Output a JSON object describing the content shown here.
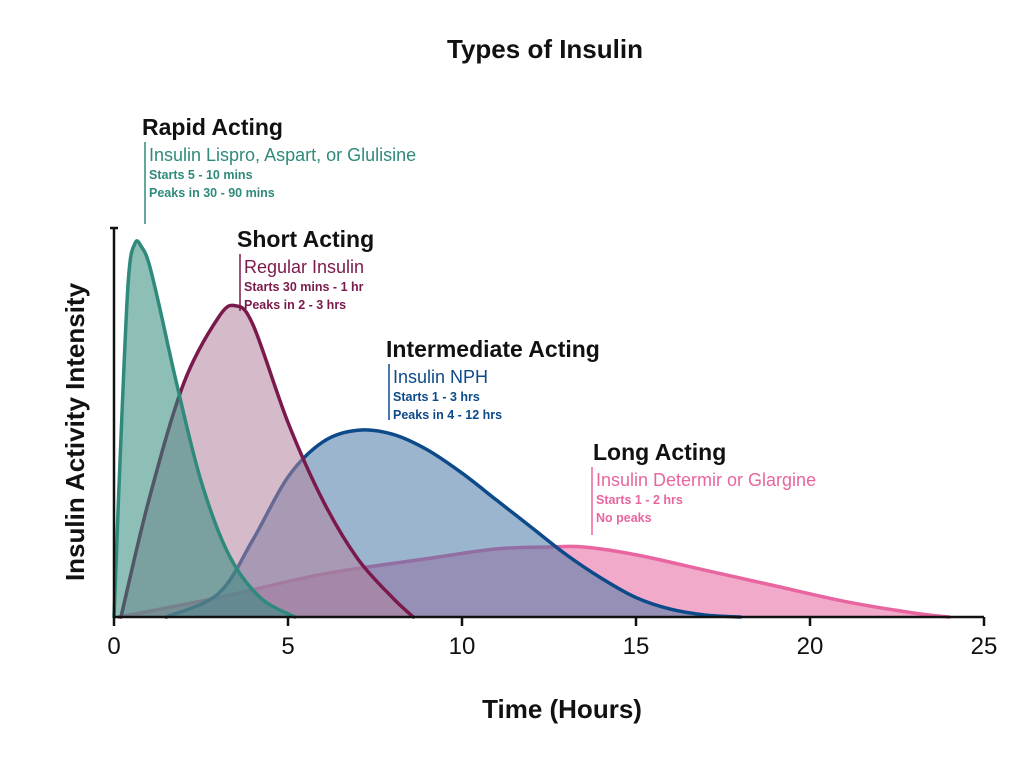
{
  "chart_data": {
    "type": "area",
    "title": "Types of Insulin",
    "xlabel": "Time (Hours)",
    "ylabel": "Insulin Activity Intensity",
    "xlim": [
      0,
      25
    ],
    "ylim": [
      0,
      1
    ],
    "xticks": [
      0,
      5,
      10,
      15,
      20,
      25
    ],
    "grid": false,
    "series": [
      {
        "name": "Long Acting",
        "subtitle": "Insulin Determir or Glargine",
        "details": [
          "Starts 1 - 2 hrs",
          "No peaks"
        ],
        "stroke": "#e8659f",
        "fill": "#e8659f",
        "x": [
          0.15,
          3,
          6,
          9,
          11,
          12.5,
          13.5,
          15,
          17,
          19,
          21,
          23,
          24
        ],
        "y": [
          0,
          0.05,
          0.11,
          0.15,
          0.175,
          0.18,
          0.18,
          0.16,
          0.12,
          0.08,
          0.04,
          0.01,
          0
        ]
      },
      {
        "name": "Intermediate Acting",
        "subtitle": "Insulin NPH",
        "details": [
          "Starts 1 - 3 hrs",
          "Peaks in 4 - 12 hrs"
        ],
        "stroke": "#0d4a8a",
        "fill": "#4a78a6",
        "x": [
          1.5,
          3,
          4,
          5,
          6,
          7,
          8,
          9,
          10,
          11,
          12,
          13,
          14,
          15,
          16,
          17,
          18
        ],
        "y": [
          0,
          0.06,
          0.2,
          0.36,
          0.45,
          0.48,
          0.47,
          0.43,
          0.37,
          0.3,
          0.23,
          0.16,
          0.1,
          0.05,
          0.02,
          0.005,
          0
        ]
      },
      {
        "name": "Short Acting",
        "subtitle": "Regular Insulin",
        "details": [
          "Starts 30 mins - 1 hr",
          "Peaks in  2 - 3 hrs"
        ],
        "stroke": "#7a1a4c",
        "fill": "#b3839e",
        "x": [
          0.2,
          1,
          2,
          3,
          3.5,
          4,
          5,
          6,
          7,
          8,
          8.6
        ],
        "y": [
          0,
          0.3,
          0.6,
          0.77,
          0.8,
          0.75,
          0.5,
          0.3,
          0.15,
          0.05,
          0
        ]
      },
      {
        "name": "Rapid Acting",
        "subtitle": "Insulin Lispro, Aspart, or Glulisine",
        "details": [
          "Starts 5 - 10 mins",
          "Peaks in  30 - 90 mins"
        ],
        "stroke": "#2f8a7c",
        "fill": "#2f8a7c",
        "x": [
          0,
          0.15,
          0.4,
          0.6,
          0.8,
          1.0,
          1.3,
          1.8,
          2.5,
          3.3,
          4.2,
          5.2
        ],
        "y": [
          0,
          0.35,
          0.85,
          0.96,
          0.95,
          0.91,
          0.8,
          0.6,
          0.35,
          0.16,
          0.05,
          0
        ]
      }
    ]
  }
}
